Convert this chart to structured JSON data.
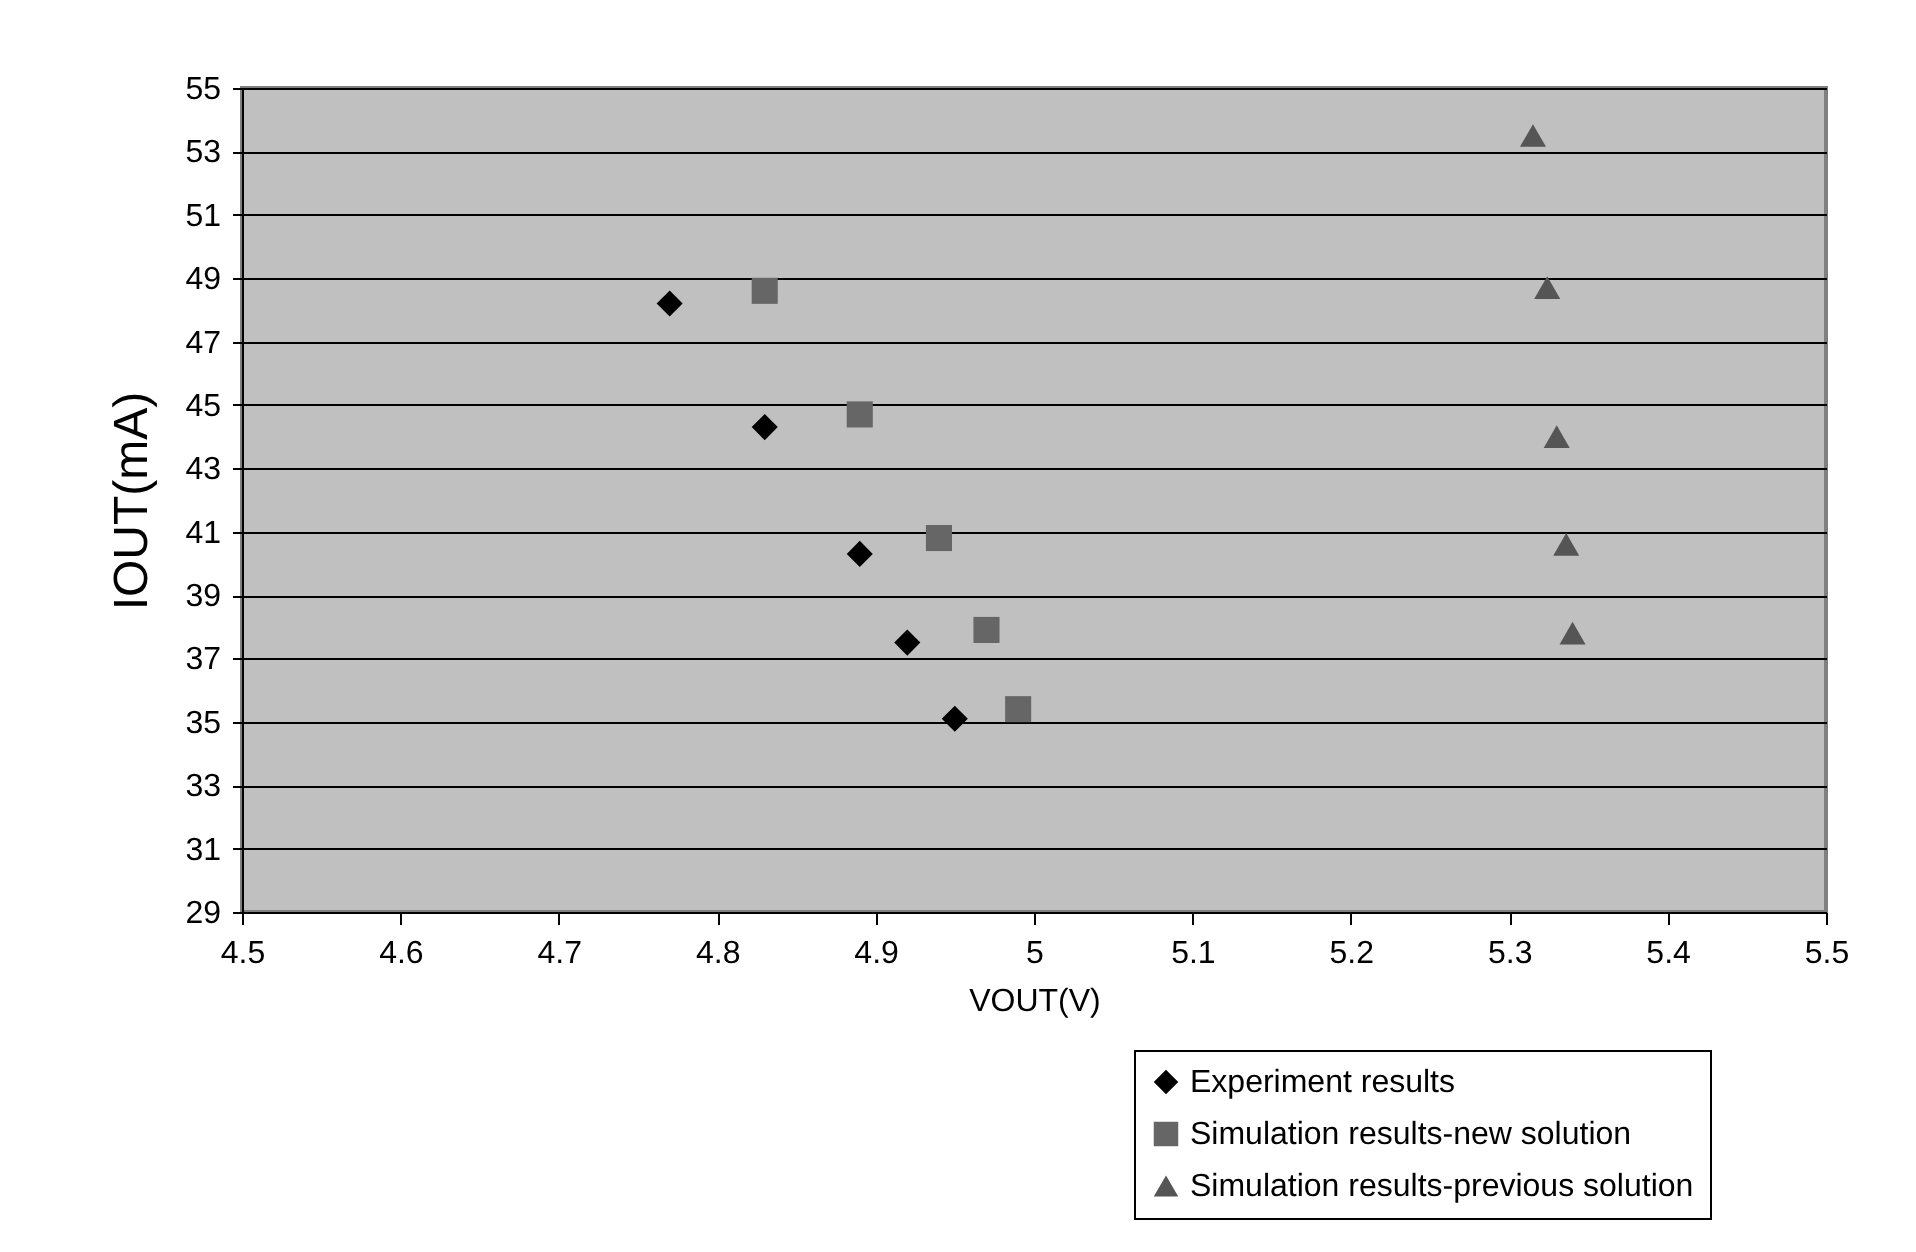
{
  "chart_data": {
    "type": "scatter",
    "xlabel": "VOUT(V)",
    "ylabel": "IOUT(mA)",
    "xlim": [
      4.5,
      5.5
    ],
    "xticks": [
      4.5,
      4.6,
      4.7,
      4.8,
      4.9,
      5,
      5.1,
      5.2,
      5.3,
      5.4,
      5.5
    ],
    "ylim": [
      29,
      55
    ],
    "yticks": [
      29,
      31,
      33,
      35,
      37,
      39,
      41,
      43,
      45,
      47,
      49,
      51,
      53,
      55
    ],
    "grid": "y",
    "legend": "bottom right",
    "series": [
      {
        "name": "Experiment results",
        "color": "#000000",
        "marker": "diamond",
        "x": [
          4.77,
          4.83,
          4.89,
          4.92,
          4.95
        ],
        "values": [
          48.2,
          44.3,
          40.3,
          37.5,
          35.1
        ]
      },
      {
        "name": "Simulation results-new solution",
        "color": "#666666",
        "marker": "square",
        "x": [
          4.83,
          4.89,
          4.94,
          4.97,
          4.99
        ],
        "values": [
          48.6,
          44.7,
          40.8,
          37.9,
          35.4
        ]
      },
      {
        "name": "Simulation results-previous solution",
        "color": "#555555",
        "marker": "triangle",
        "x": [
          5.315,
          5.324,
          5.33,
          5.336,
          5.34
        ],
        "values": [
          53.5,
          48.7,
          44.0,
          40.6,
          37.8
        ]
      }
    ]
  }
}
